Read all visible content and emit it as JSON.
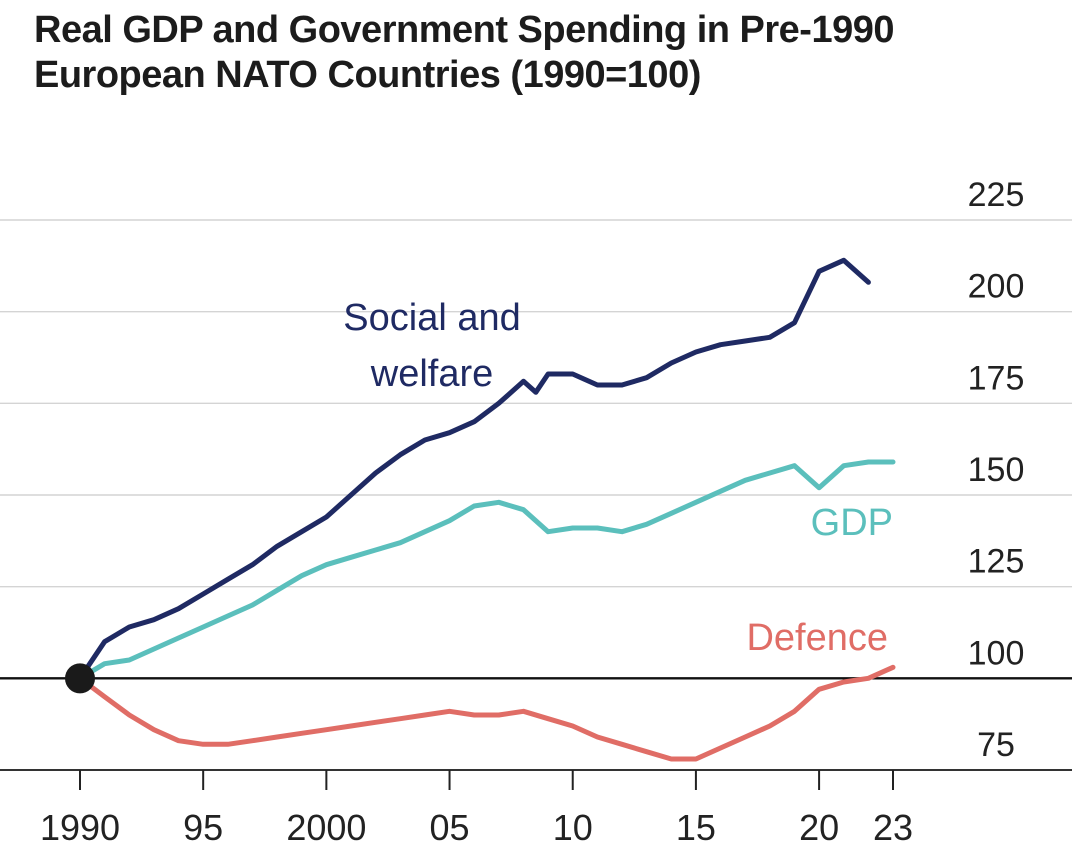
{
  "chart_data": {
    "type": "line",
    "title_lines": [
      "Real GDP and Government Spending in Pre-1990",
      "European NATO Countries (1990=100)"
    ],
    "xlabel": "",
    "ylabel": "",
    "xlim": [
      1990,
      2023
    ],
    "ylim": [
      75,
      225
    ],
    "baseline": 100,
    "yticks": [
      {
        "value": 225,
        "label": "225"
      },
      {
        "value": 200,
        "label": "200"
      },
      {
        "value": 175,
        "label": "175"
      },
      {
        "value": 150,
        "label": "150"
      },
      {
        "value": 125,
        "label": "125"
      },
      {
        "value": 100,
        "label": "100"
      },
      {
        "value": 75,
        "label": "75"
      }
    ],
    "xticks": [
      {
        "value": 1990,
        "label": "1990"
      },
      {
        "value": 1995,
        "label": "95"
      },
      {
        "value": 2000,
        "label": "2000"
      },
      {
        "value": 2005,
        "label": "05"
      },
      {
        "value": 2010,
        "label": "10"
      },
      {
        "value": 2015,
        "label": "15"
      },
      {
        "value": 2020,
        "label": "20"
      },
      {
        "value": 2023,
        "label": "23"
      }
    ],
    "grid": true,
    "series": [
      {
        "key": "social",
        "label_lines": [
          "Social and",
          "welfare"
        ],
        "color": "#1f2a63",
        "x": [
          1990,
          1991,
          1992,
          1993,
          1994,
          1995,
          1996,
          1997,
          1998,
          1999,
          2000,
          2001,
          2002,
          2003,
          2004,
          2005,
          2006,
          2007,
          2008,
          2008.5,
          2009,
          2010,
          2011,
          2012,
          2013,
          2014,
          2015,
          2016,
          2017,
          2018,
          2019,
          2020,
          2021,
          2022
        ],
        "y": [
          100,
          110,
          114,
          116,
          119,
          123,
          127,
          131,
          136,
          140,
          144,
          150,
          156,
          161,
          165,
          167,
          170,
          175,
          181,
          178,
          183,
          183,
          180,
          180,
          182,
          186,
          189,
          191,
          192,
          193,
          197,
          211,
          214,
          208
        ]
      },
      {
        "key": "gdp",
        "label_lines": [
          "GDP"
        ],
        "color": "#5bbfbc",
        "x": [
          1990,
          1991,
          1992,
          1993,
          1994,
          1995,
          1996,
          1997,
          1998,
          1999,
          2000,
          2001,
          2002,
          2003,
          2004,
          2005,
          2006,
          2007,
          2008,
          2009,
          2010,
          2011,
          2012,
          2013,
          2014,
          2015,
          2016,
          2017,
          2018,
          2019,
          2020,
          2021,
          2022,
          2023
        ],
        "y": [
          100,
          104,
          105,
          108,
          111,
          114,
          117,
          120,
          124,
          128,
          131,
          133,
          135,
          137,
          140,
          143,
          147,
          148,
          146,
          140,
          141,
          141,
          140,
          142,
          145,
          148,
          151,
          154,
          156,
          158,
          152,
          158,
          159,
          159
        ]
      },
      {
        "key": "defence",
        "label_lines": [
          "Defence"
        ],
        "color": "#e06d66",
        "x": [
          1990,
          1991,
          1992,
          1993,
          1994,
          1995,
          1996,
          1997,
          1998,
          1999,
          2000,
          2001,
          2002,
          2003,
          2004,
          2005,
          2006,
          2007,
          2008,
          2009,
          2010,
          2011,
          2012,
          2013,
          2014,
          2015,
          2016,
          2017,
          2018,
          2019,
          2020,
          2021,
          2022,
          2023
        ],
        "y": [
          100,
          95,
          90,
          86,
          83,
          82,
          82,
          83,
          84,
          85,
          86,
          87,
          88,
          89,
          90,
          91,
          90,
          90,
          91,
          89,
          87,
          84,
          82,
          80,
          78,
          78,
          81,
          84,
          87,
          91,
          97,
          99,
          100,
          103
        ]
      }
    ]
  }
}
